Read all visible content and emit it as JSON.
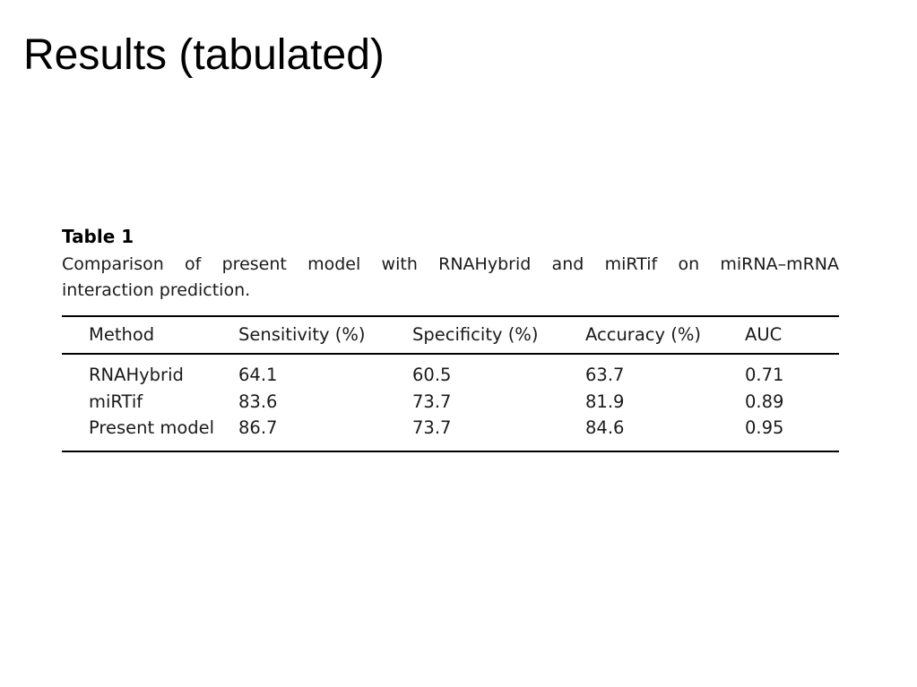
{
  "slide": {
    "title": "Results (tabulated)"
  },
  "table": {
    "label": "Table 1",
    "caption_lines": [
      "Comparison of present model with RNAHybrid and miRTif on miRNA–mRNA",
      "interaction prediction."
    ],
    "headers": [
      "Method",
      "Sensitivity (%)",
      "Specificity (%)",
      "Accuracy (%)",
      "AUC"
    ],
    "rows": [
      [
        "RNAHybrid",
        "64.1",
        "60.5",
        "63.7",
        "0.71"
      ],
      [
        "miRTif",
        "83.6",
        "73.7",
        "81.9",
        "0.89"
      ],
      [
        "Present model",
        "86.7",
        "73.7",
        "84.6",
        "0.95"
      ]
    ]
  }
}
